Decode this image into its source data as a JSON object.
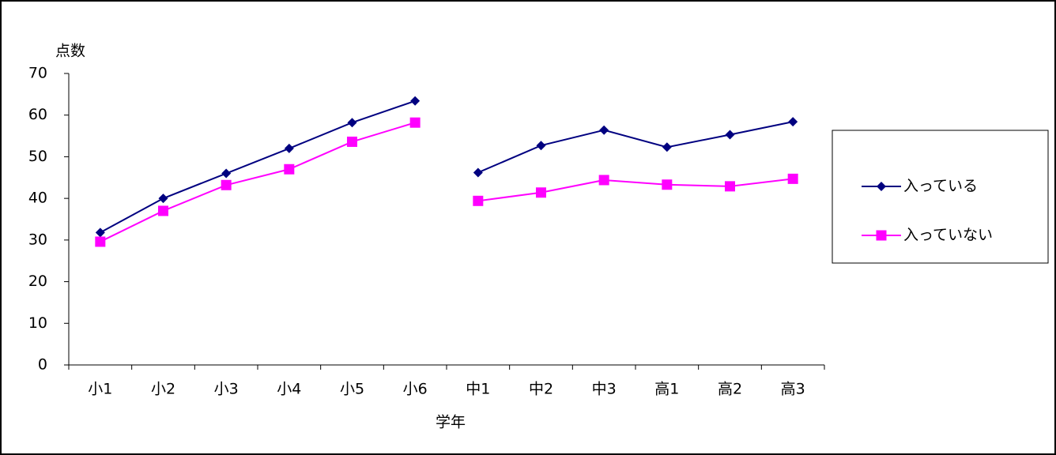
{
  "chart_data": {
    "type": "line",
    "y_label": "点数",
    "x_label": "学年",
    "categories": [
      "小1",
      "小2",
      "小3",
      "小4",
      "小5",
      "小6",
      "中1",
      "中2",
      "中3",
      "高1",
      "高2",
      "高3"
    ],
    "line_breaks": [
      6
    ],
    "series": [
      {
        "name": "入っている",
        "color": "#000080",
        "marker": "diamond",
        "values": [
          31.8,
          40,
          46,
          52,
          58.2,
          63.4,
          46.2,
          52.7,
          56.4,
          52.3,
          55.3,
          58.4
        ]
      },
      {
        "name": "入っていない",
        "color": "#ff00ff",
        "marker": "square",
        "values": [
          29.6,
          37,
          43.2,
          47,
          53.6,
          58.2,
          39.4,
          41.4,
          44.4,
          43.3,
          42.9,
          44.7
        ]
      }
    ],
    "ylim": [
      0,
      70
    ],
    "yticks": [
      0,
      10,
      20,
      30,
      40,
      50,
      60,
      70
    ],
    "legend": "right",
    "grid": false
  }
}
